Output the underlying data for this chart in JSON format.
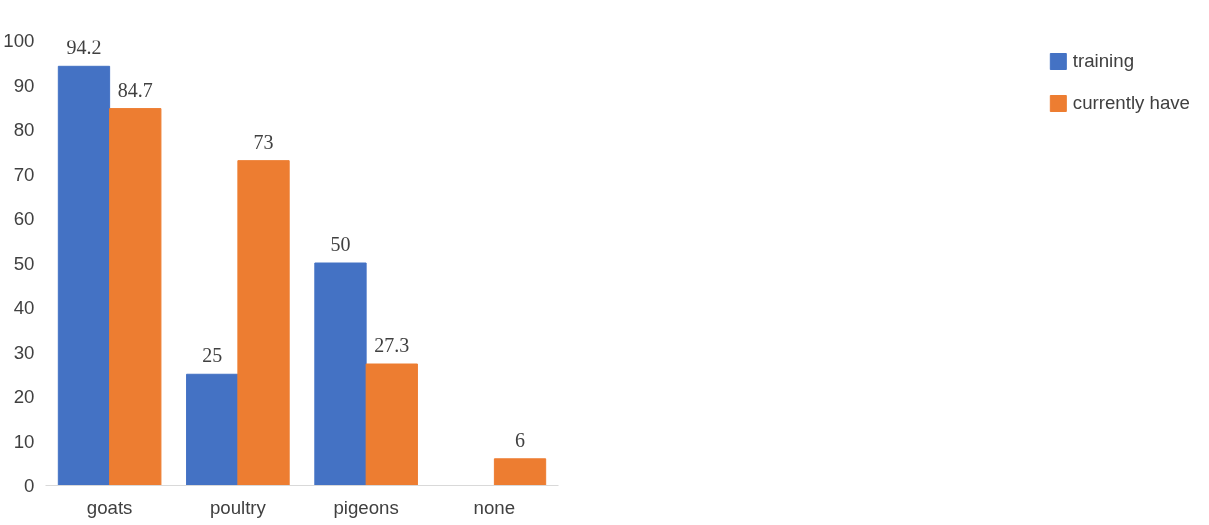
{
  "chart_data": {
    "type": "bar",
    "categories": [
      "goats",
      "poultry",
      "pigeons",
      "none"
    ],
    "series": [
      {
        "name": "training",
        "color": "#4472c4",
        "values": [
          94.2,
          25,
          50,
          null
        ]
      },
      {
        "name": "currently have",
        "color": "#ed7d31",
        "values": [
          84.7,
          73,
          27.3,
          6
        ]
      }
    ],
    "ylim": [
      0,
      100
    ],
    "yticks": [
      0,
      10,
      20,
      30,
      40,
      50,
      60,
      70,
      80,
      90,
      100
    ],
    "grid": false,
    "legend": "right",
    "data_labels": true
  }
}
